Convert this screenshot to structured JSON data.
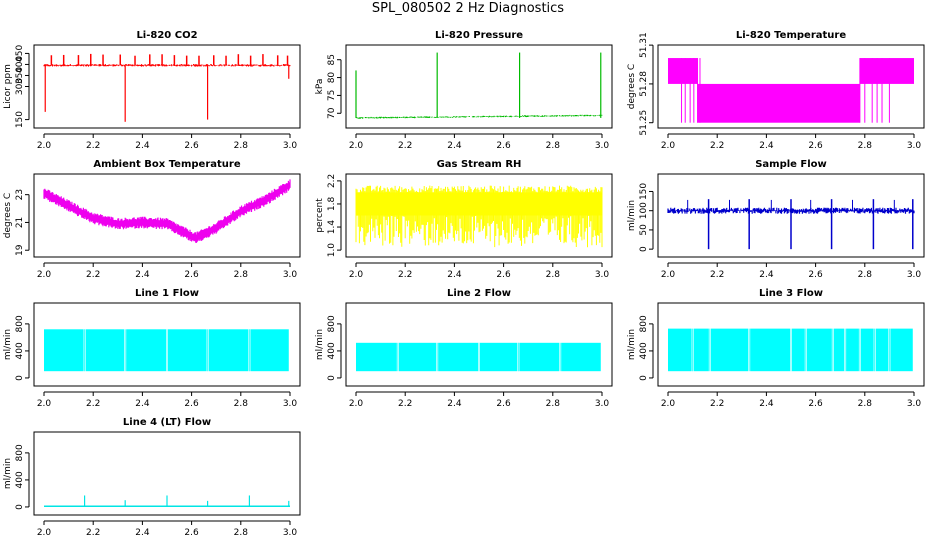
{
  "page": {
    "title": "SPL_080502  2 Hz Diagnostics"
  },
  "chart_data": [
    {
      "id": "co2",
      "type": "line",
      "title": "Li-820 CO2",
      "ylabel": "Licor ppm",
      "color": "#ff0000",
      "xlim": [
        2.0,
        3.0
      ],
      "ylim": [
        130,
        470
      ],
      "xticks": [
        "2.0",
        "2.2",
        "2.4",
        "2.6",
        "2.8",
        "3.0"
      ],
      "yticks": [
        {
          "v": 150,
          "label": "150"
        },
        {
          "v": 300,
          "label": "300"
        },
        {
          "v": 350,
          "label": "350"
        },
        {
          "v": 400,
          "label": "400"
        },
        {
          "v": 450,
          "label": "450"
        }
      ],
      "series": [
        {
          "name": "CO2",
          "baseline": 396,
          "noise": 6,
          "spikes_up": [
            2.03,
            2.08,
            2.14,
            2.19,
            2.24,
            2.31,
            2.37,
            2.43,
            2.48,
            2.53,
            2.58,
            2.63,
            2.69,
            2.74,
            2.79,
            2.84,
            2.89,
            2.95,
            2.99
          ],
          "spike_up_to": 448,
          "spikes_down": [
            {
              "x": 2.005,
              "y": 185
            },
            {
              "x": 2.33,
              "y": 140
            },
            {
              "x": 2.665,
              "y": 150
            },
            {
              "x": 2.995,
              "y": 335
            }
          ]
        }
      ]
    },
    {
      "id": "pressure",
      "type": "line",
      "title": "Li-820 Pressure",
      "ylabel": "kPa",
      "color": "#00bb00",
      "xlim": [
        2.0,
        3.0
      ],
      "ylim": [
        67,
        88
      ],
      "xticks": [
        "2.0",
        "2.2",
        "2.4",
        "2.6",
        "2.8",
        "3.0"
      ],
      "yticks": [
        {
          "v": 70,
          "label": "70"
        },
        {
          "v": 75,
          "label": "75"
        },
        {
          "v": 80,
          "label": "80"
        },
        {
          "v": 85,
          "label": "85"
        }
      ],
      "series": [
        {
          "name": "Pressure",
          "baseline_start": 68.7,
          "baseline_end": 69.4,
          "spikes": [
            {
              "x": 2.0,
              "y": 82
            },
            {
              "x": 2.33,
              "y": 87
            },
            {
              "x": 2.665,
              "y": 87
            },
            {
              "x": 2.995,
              "y": 87
            }
          ]
        }
      ]
    },
    {
      "id": "licor_temp",
      "type": "line",
      "title": "Li-820 Temperature",
      "ylabel": "degrees C",
      "color": "#ff00ff",
      "xlim": [
        2.0,
        3.0
      ],
      "ylim": [
        51.249,
        51.307
      ],
      "xticks": [
        "2.0",
        "2.2",
        "2.4",
        "2.6",
        "2.8",
        "3.0"
      ],
      "yticks": [
        {
          "v": 51.25,
          "label": "51.25"
        },
        {
          "v": 51.28,
          "label": "51.28"
        },
        {
          "v": 51.31,
          "label": "51.31"
        }
      ],
      "series": [
        {
          "name": "Temperature",
          "low": 51.25,
          "mid": 51.28,
          "high": 51.3,
          "segments": [
            {
              "from": 2.0,
              "to": 2.12,
              "level": "high"
            },
            {
              "from": 2.12,
              "to": 2.78,
              "level": "low"
            },
            {
              "from": 2.78,
              "to": 3.0,
              "level": "high"
            }
          ]
        }
      ]
    },
    {
      "id": "box_temp",
      "type": "line",
      "title": "Ambient Box Temperature",
      "ylabel": "degrees C",
      "color": "#ee00ee",
      "xlim": [
        2.0,
        3.0
      ],
      "ylim": [
        18.8,
        24.2
      ],
      "xticks": [
        "2.0",
        "2.2",
        "2.4",
        "2.6",
        "2.8",
        "3.0"
      ],
      "yticks": [
        {
          "v": 19,
          "label": "19"
        },
        {
          "v": 21,
          "label": "21"
        },
        {
          "v": 23,
          "label": "23"
        }
      ],
      "series": [
        {
          "name": "Box Temp",
          "x": [
            2.0,
            2.1,
            2.2,
            2.3,
            2.4,
            2.5,
            2.6,
            2.62,
            2.7,
            2.8,
            2.9,
            3.0
          ],
          "y": [
            23.1,
            22.2,
            21.3,
            20.9,
            21.0,
            20.9,
            20.0,
            19.9,
            20.6,
            21.8,
            22.6,
            23.7
          ],
          "band": 0.35
        }
      ]
    },
    {
      "id": "gas_rh",
      "type": "line",
      "title": "Gas Stream RH",
      "ylabel": "percent",
      "color": "#ffff00",
      "xlim": [
        2.0,
        3.0
      ],
      "ylim": [
        0.95,
        2.25
      ],
      "xticks": [
        "2.0",
        "2.2",
        "2.4",
        "2.6",
        "2.8",
        "3.0"
      ],
      "yticks": [
        {
          "v": 1.0,
          "label": "1.0"
        },
        {
          "v": 1.4,
          "label": "1.4"
        },
        {
          "v": 1.8,
          "label": "1.8"
        },
        {
          "v": 2.2,
          "label": "2.2"
        }
      ],
      "series": [
        {
          "name": "RH",
          "upper": 2.0,
          "lower": 1.6,
          "min": 1.05,
          "max": 2.15
        }
      ]
    },
    {
      "id": "sample_flow",
      "type": "line",
      "title": "Sample Flow",
      "ylabel": "ml/min",
      "color": "#0000cc",
      "xlim": [
        2.0,
        3.0
      ],
      "ylim": [
        -10,
        185
      ],
      "xticks": [
        "2.0",
        "2.2",
        "2.4",
        "2.6",
        "2.8",
        "3.0"
      ],
      "yticks": [
        {
          "v": 0,
          "label": "0"
        },
        {
          "v": 50,
          "label": "50"
        },
        {
          "v": 100,
          "label": "100"
        },
        {
          "v": 150,
          "label": "150"
        }
      ],
      "series": [
        {
          "name": "Sample",
          "baseline": 100,
          "noise": 8,
          "dips": [
            2.165,
            2.33,
            2.5,
            2.665,
            2.835,
            2.995
          ]
        }
      ]
    },
    {
      "id": "line1",
      "type": "line",
      "title": "Line 1 Flow",
      "ylabel": "ml/min",
      "color": "#00ffff",
      "xlim": [
        2.0,
        3.0
      ],
      "ylim": [
        -60,
        1050
      ],
      "xticks": [
        "2.0",
        "2.2",
        "2.4",
        "2.6",
        "2.8",
        "3.0"
      ],
      "yticks": [
        {
          "v": 0,
          "label": "0"
        },
        {
          "v": 400,
          "label": "400"
        },
        {
          "v": 800,
          "label": "800"
        }
      ],
      "series": [
        {
          "name": "Line 1",
          "low": 100,
          "high": 720,
          "gaps": [
            2.165,
            2.33,
            2.5,
            2.665,
            2.835
          ]
        }
      ]
    },
    {
      "id": "line2",
      "type": "line",
      "title": "Line 2 Flow",
      "ylabel": "ml/min",
      "color": "#00ffff",
      "xlim": [
        2.0,
        3.0
      ],
      "ylim": [
        -60,
        1050
      ],
      "xticks": [
        "2.0",
        "2.2",
        "2.4",
        "2.6",
        "2.8",
        "3.0"
      ],
      "yticks": [
        {
          "v": 0,
          "label": "0"
        },
        {
          "v": 400,
          "label": "400"
        },
        {
          "v": 800,
          "label": "800"
        }
      ],
      "series": [
        {
          "name": "Line 2",
          "low": 100,
          "high": 520,
          "gaps": [
            2.17,
            2.33,
            2.5,
            2.66,
            2.83
          ]
        }
      ]
    },
    {
      "id": "line3",
      "type": "line",
      "title": "Line 3 Flow",
      "ylabel": "ml/min",
      "color": "#00ffff",
      "xlim": [
        2.0,
        3.0
      ],
      "ylim": [
        -60,
        1050
      ],
      "xticks": [
        "2.0",
        "2.2",
        "2.4",
        "2.6",
        "2.8",
        "3.0"
      ],
      "yticks": [
        {
          "v": 0,
          "label": "0"
        },
        {
          "v": 400,
          "label": "400"
        },
        {
          "v": 800,
          "label": "800"
        }
      ],
      "series": [
        {
          "name": "Line 3",
          "low": 100,
          "high": 730,
          "gaps": [
            2.1,
            2.17,
            2.33,
            2.5,
            2.56,
            2.67,
            2.72,
            2.78,
            2.84,
            2.9
          ]
        }
      ]
    },
    {
      "id": "line4",
      "type": "line",
      "title": "Line 4 (LT) Flow",
      "ylabel": "ml/min",
      "color": "#00e5e5",
      "xlim": [
        2.0,
        3.0
      ],
      "ylim": [
        -60,
        1050
      ],
      "xticks": [
        "2.0",
        "2.2",
        "2.4",
        "2.6",
        "2.8",
        "3.0"
      ],
      "yticks": [
        {
          "v": 0,
          "label": "0"
        },
        {
          "v": 400,
          "label": "400"
        },
        {
          "v": 800,
          "label": "800"
        }
      ],
      "series": [
        {
          "name": "Line 4",
          "baseline": 10,
          "spikes": [
            {
              "x": 2.165,
              "y": 170
            },
            {
              "x": 2.33,
              "y": 100
            },
            {
              "x": 2.5,
              "y": 170
            },
            {
              "x": 2.665,
              "y": 90
            },
            {
              "x": 2.835,
              "y": 170
            },
            {
              "x": 2.995,
              "y": 90
            }
          ]
        }
      ]
    }
  ]
}
